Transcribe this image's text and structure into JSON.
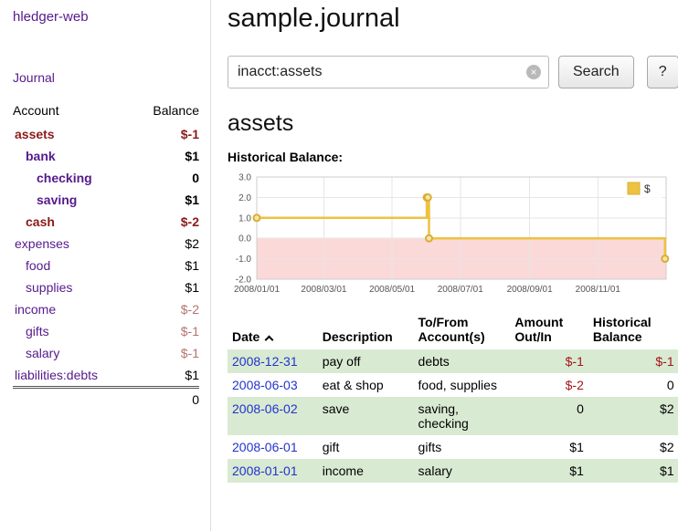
{
  "sidebar": {
    "app_title": "hledger-web",
    "journal_label": "Journal",
    "accounts_header": {
      "account": "Account",
      "balance": "Balance"
    },
    "accounts": [
      {
        "name": "assets",
        "balance": "$-1"
      },
      {
        "name": "bank",
        "balance": "$1"
      },
      {
        "name": "checking",
        "balance": "0"
      },
      {
        "name": "saving",
        "balance": "$1"
      },
      {
        "name": "cash",
        "balance": "$-2"
      },
      {
        "name": "expenses",
        "balance": "$2"
      },
      {
        "name": "food",
        "balance": "$1"
      },
      {
        "name": "supplies",
        "balance": "$1"
      },
      {
        "name": "income",
        "balance": "$-2"
      },
      {
        "name": "gifts",
        "balance": "$-1"
      },
      {
        "name": "salary",
        "balance": "$-1"
      },
      {
        "name": "liabilities:debts",
        "balance": "$1"
      }
    ],
    "total": "0"
  },
  "main": {
    "title": "sample.journal",
    "search": {
      "value": "inacct:assets",
      "clear_icon": "×",
      "button_label": "Search",
      "help_label": "?"
    },
    "account_heading": "assets",
    "chart_title": "Historical Balance:",
    "register": {
      "headers": {
        "date": "Date",
        "description": "Description",
        "accounts": "To/From Account(s)",
        "amount": "Amount Out/In",
        "balance": "Historical Balance"
      },
      "rows": [
        {
          "date": "2008-12-31",
          "description": "pay off",
          "accounts": "debts",
          "amount": "$-1",
          "balance": "$-1"
        },
        {
          "date": "2008-06-03",
          "description": "eat & shop",
          "accounts": "food, supplies",
          "amount": "$-2",
          "balance": "0"
        },
        {
          "date": "2008-06-02",
          "description": "save",
          "accounts": "saving, checking",
          "amount": "0",
          "balance": "$2"
        },
        {
          "date": "2008-06-01",
          "description": "gift",
          "accounts": "gifts",
          "amount": "$1",
          "balance": "$2"
        },
        {
          "date": "2008-01-01",
          "description": "income",
          "accounts": "salary",
          "amount": "$1",
          "balance": "$1"
        }
      ]
    }
  },
  "chart_data": {
    "type": "line",
    "title": "Historical Balance:",
    "step": true,
    "series": [
      {
        "name": "$",
        "points": [
          {
            "date": "2008-01-01",
            "value": 1
          },
          {
            "date": "2008-06-01",
            "value": 2
          },
          {
            "date": "2008-06-02",
            "value": 2
          },
          {
            "date": "2008-06-03",
            "value": 0
          },
          {
            "date": "2008-12-31",
            "value": -1
          }
        ]
      }
    ],
    "xlim": [
      "2008-01-01",
      "2009-01-01"
    ],
    "ylim": [
      -2,
      3
    ],
    "yticks": [
      3.0,
      2.0,
      1.0,
      0.0,
      -1.0,
      -2.0
    ],
    "xticks": [
      {
        "date": "2008-01-01",
        "label": "2008/01/01"
      },
      {
        "date": "2008-03-01",
        "label": "2008/03/01"
      },
      {
        "date": "2008-05-01",
        "label": "2008/05/01"
      },
      {
        "date": "2008-07-01",
        "label": "2008/07/01"
      },
      {
        "date": "2008-09-01",
        "label": "2008/09/01"
      },
      {
        "date": "2008-11-01",
        "label": "2008/11/01"
      }
    ],
    "legend": {
      "label": "$",
      "position": "top-right"
    },
    "grid": true,
    "colors": {
      "series": "#edc240",
      "marker_fill": "#f7e6a9",
      "marker_stroke": "#d9ae35",
      "negative_region": "#fbd9d9",
      "grid": "#e6e6e6",
      "plot_border": "#cccccc"
    }
  }
}
